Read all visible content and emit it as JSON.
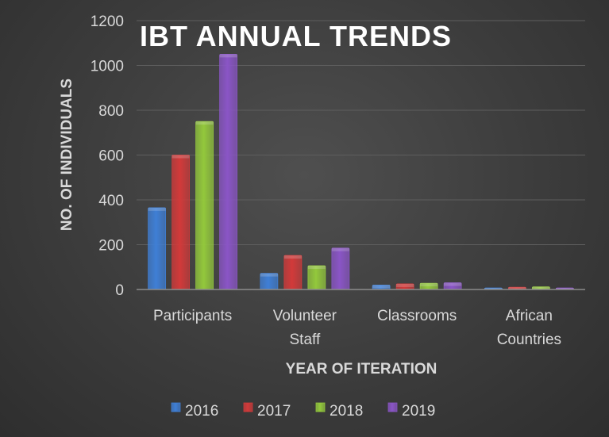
{
  "chart_data": {
    "type": "bar",
    "title": "IBT ANNUAL TRENDS",
    "xlabel": "YEAR OF ITERATION",
    "ylabel": "NO. OF INDIVIDUALS",
    "ylim": [
      0,
      1200
    ],
    "yticks": [
      0,
      200,
      400,
      600,
      800,
      1000,
      1200
    ],
    "grid": true,
    "legend_position": "bottom",
    "categories": [
      [
        "Participants"
      ],
      [
        "Volunteer",
        "Staff"
      ],
      [
        "Classrooms"
      ],
      [
        "African",
        "Countries"
      ]
    ],
    "series": [
      {
        "name": "2016",
        "color": "#3f7fd6",
        "values": [
          365,
          72,
          20,
          7
        ]
      },
      {
        "name": "2017",
        "color": "#d23a3a",
        "values": [
          600,
          152,
          25,
          10
        ]
      },
      {
        "name": "2018",
        "color": "#93c83c",
        "values": [
          750,
          106,
          28,
          12
        ]
      },
      {
        "name": "2019",
        "color": "#8a55c6",
        "values": [
          1050,
          185,
          30,
          7
        ]
      }
    ]
  }
}
